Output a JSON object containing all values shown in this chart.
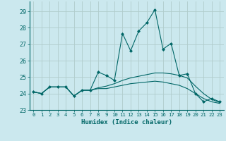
{
  "title": "",
  "xlabel": "Humidex (Indice chaleur)",
  "background_color": "#cbe8ee",
  "grid_color": "#b0cccc",
  "line_color": "#006666",
  "xlim": [
    -0.5,
    23.5
  ],
  "ylim": [
    23,
    29.6
  ],
  "yticks": [
    23,
    24,
    25,
    26,
    27,
    28,
    29
  ],
  "xticks": [
    0,
    1,
    2,
    3,
    4,
    5,
    6,
    7,
    8,
    9,
    10,
    11,
    12,
    13,
    14,
    15,
    16,
    17,
    18,
    19,
    20,
    21,
    22,
    23
  ],
  "series": [
    [
      24.1,
      24.0,
      24.4,
      24.4,
      24.4,
      23.85,
      24.2,
      24.2,
      25.3,
      25.1,
      24.8,
      27.65,
      26.6,
      27.8,
      28.3,
      29.1,
      26.7,
      27.05,
      25.1,
      25.2,
      24.0,
      23.5,
      23.7,
      23.5
    ],
    [
      24.1,
      24.0,
      24.4,
      24.4,
      24.4,
      23.85,
      24.2,
      24.2,
      24.35,
      24.45,
      24.6,
      24.8,
      24.95,
      25.05,
      25.15,
      25.25,
      25.25,
      25.2,
      25.1,
      24.95,
      24.45,
      24.0,
      23.65,
      23.45
    ],
    [
      24.1,
      24.0,
      24.4,
      24.4,
      24.4,
      23.85,
      24.2,
      24.2,
      24.3,
      24.3,
      24.4,
      24.5,
      24.6,
      24.65,
      24.7,
      24.75,
      24.7,
      24.6,
      24.5,
      24.3,
      24.0,
      23.7,
      23.5,
      23.4
    ]
  ]
}
